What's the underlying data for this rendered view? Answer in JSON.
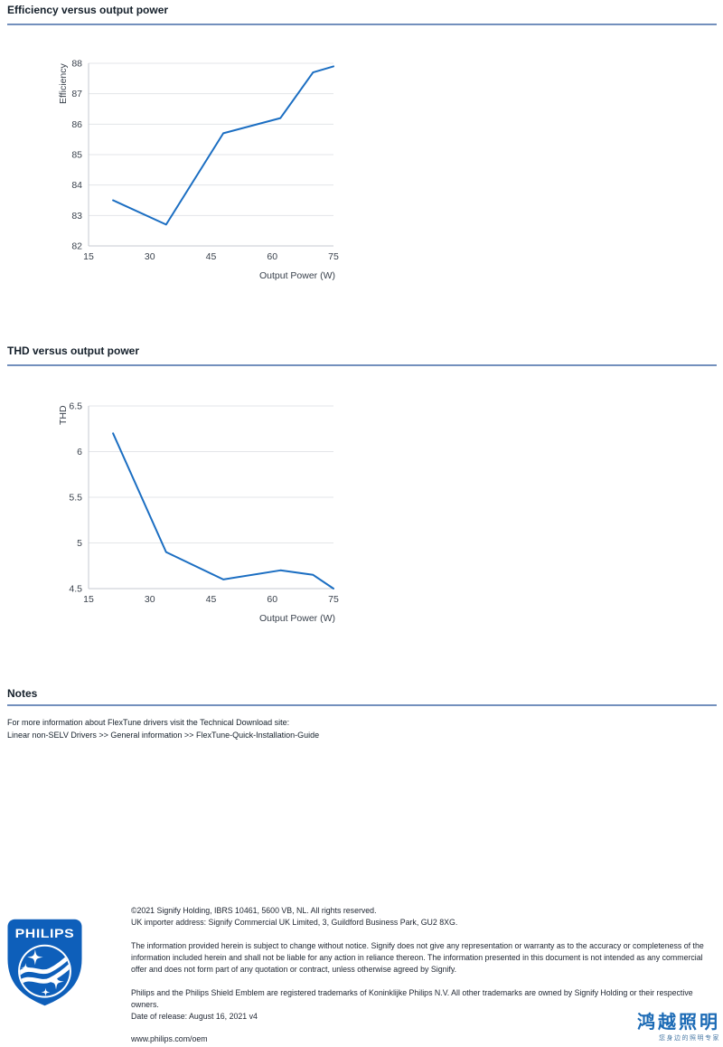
{
  "colors": {
    "chart_line": "#1b6ec2",
    "section_rule": "#7390bd",
    "grid_line": "#e3e5e8",
    "axis_line": "#c6cad0",
    "philips_blue": "#0e5fba",
    "partner_blue": "#1b6ab5"
  },
  "chart_data": [
    {
      "type": "line",
      "title": "Efficiency versus output power",
      "xlabel": "Output Power (W)",
      "ylabel": "Efficiency",
      "x": [
        21,
        34,
        48,
        62,
        70,
        75
      ],
      "y": [
        83.5,
        82.7,
        85.7,
        86.2,
        87.7,
        87.9
      ],
      "xlim": [
        15,
        75
      ],
      "ylim": [
        82,
        88
      ],
      "xticks": [
        15,
        30,
        45,
        60,
        75
      ],
      "yticks": [
        82,
        83,
        84,
        85,
        86,
        87,
        88
      ],
      "grid": "horizontal-only",
      "legend": "none"
    },
    {
      "type": "line",
      "title": "THD versus output power",
      "xlabel": "Output Power (W)",
      "ylabel": "THD",
      "x": [
        21,
        34,
        48,
        62,
        70,
        75
      ],
      "y": [
        6.2,
        4.9,
        4.6,
        4.7,
        4.65,
        4.5
      ],
      "xlim": [
        15,
        75
      ],
      "ylim": [
        4.5,
        6.5
      ],
      "xticks": [
        15,
        30,
        45,
        60,
        75
      ],
      "yticks": [
        4.5,
        5,
        5.5,
        6,
        6.5
      ],
      "grid": "horizontal-only",
      "legend": "none"
    }
  ],
  "notes": {
    "title": "Notes",
    "lines": [
      "For more information about FlexTune drivers visit the Technical Download site:",
      "Linear non-SELV Drivers >> General information >> FlexTune-Quick-Installation-Guide"
    ]
  },
  "footer": {
    "philips_logo_text": "PHILIPS",
    "copyright_line": "©2021 Signify Holding, IBRS 10461, 5600 VB, NL. All rights reserved.",
    "uk_importer_line": "UK importer address: Signify Commercial UK Limited, 3, Guildford Business Park, GU2 8XG.",
    "disclaimer": "The information provided herein is subject to change without notice. Signify does not give any representation or warranty as to the accuracy or completeness of the information included herein and shall not be liable for any action in reliance thereon. The information presented in this document is not intended as any commercial offer and does not form part of any quotation or contract, unless otherwise agreed by Signify.",
    "trademark": "Philips and the Philips Shield Emblem are registered trademarks of Koninklijke Philips N.V. All other trademarks are owned by Signify Holding or their respective owners.",
    "release_line": "Date of release: August 16, 2021 v4",
    "website": "www.philips.com/oem",
    "partner_logo": {
      "name": "鸿越照明",
      "tagline": "您身边的照明专家"
    }
  }
}
